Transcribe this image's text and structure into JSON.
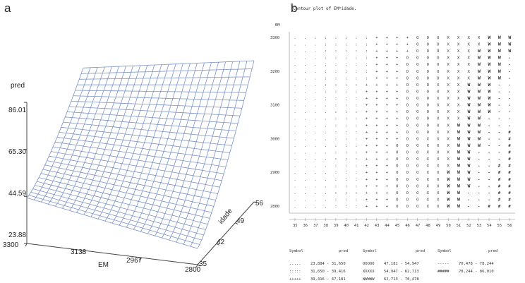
{
  "panel_a": {
    "letter": "a",
    "zlabel": "pred",
    "xlabel": "EM",
    "ylabel": "idade",
    "zticks": [
      "23.88",
      "44.59",
      "65.30",
      "86.01"
    ],
    "xticks": [
      "3300",
      "3133",
      "2967",
      "2800"
    ],
    "yticks": [
      "35",
      "42",
      "49",
      "56"
    ],
    "surface_color": "#7b93c6"
  },
  "panel_b": {
    "letter": "b",
    "title": "Contour plot of EM*idade.",
    "ylabel": "EM",
    "xlabel": "idade",
    "yticks": [
      "3300",
      "3200",
      "3100",
      "3000",
      "2900",
      "2800"
    ],
    "xticks": [
      "35",
      "36",
      "37",
      "38",
      "39",
      "40",
      "41",
      "42",
      "43",
      "44",
      "45",
      "46",
      "47",
      "48",
      "49",
      "50",
      "51",
      "52",
      "53",
      "54",
      "55",
      "56"
    ],
    "legend_header": {
      "symbol": "Symbol",
      "pred": "pred"
    },
    "legend": [
      {
        "symbol": ".....",
        "range": "23,884 - 31,650"
      },
      {
        "symbol": ":::::",
        "range": "31,650 - 39,416"
      },
      {
        "symbol": "+++++",
        "range": "39,416 - 47,181"
      },
      {
        "symbol": "OOOOO",
        "range": "47,181 - 54,947"
      },
      {
        "symbol": "XXXXX",
        "range": "54,947 - 62,713"
      },
      {
        "symbol": "WWWWW",
        "range": "62,713 - 70,478"
      },
      {
        "symbol": "-----",
        "range": "70,478 - 78,244"
      },
      {
        "symbol": "#####",
        "range": "78,244 - 86,010"
      }
    ]
  },
  "chart_data": [
    {
      "type": "surface",
      "xlabel": "EM",
      "ylabel": "idade",
      "zlabel": "pred",
      "xlim": [
        2800,
        3300
      ],
      "ylim": [
        35,
        56
      ],
      "zlim": [
        23.88,
        86.01
      ]
    },
    {
      "type": "contour",
      "title": "Contour plot of EM*idade.",
      "xlabel": "idade",
      "ylabel": "EM",
      "xlim": [
        35,
        56
      ],
      "ylim": [
        2800,
        3300
      ],
      "levels": [
        23.884,
        31.65,
        39.416,
        47.181,
        54.947,
        62.713,
        70.478,
        78.244,
        86.01
      ]
    }
  ]
}
